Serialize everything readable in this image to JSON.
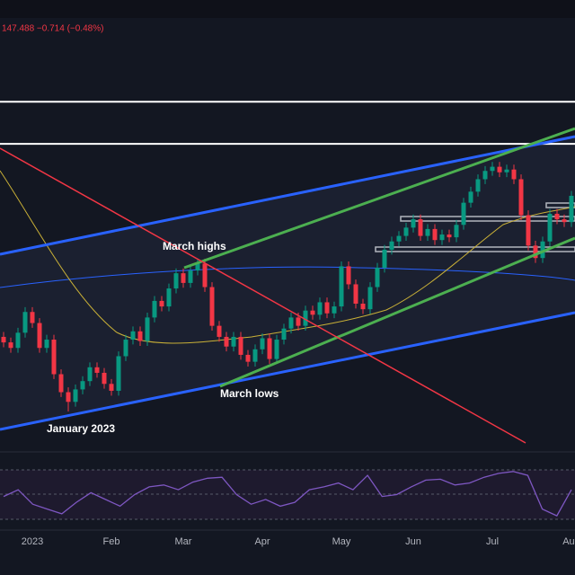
{
  "chart_data": {
    "type": "candlestick",
    "header": "147.488 −0.714 (−0.48%)",
    "annotations": [
      "March highs",
      "March lows",
      "January 2023"
    ],
    "categories": [
      null,
      null,
      null,
      null,
      "2023",
      null,
      null,
      null,
      null,
      null,
      null,
      null,
      null,
      null,
      null,
      "Feb",
      null,
      null,
      null,
      null,
      null,
      null,
      null,
      null,
      null,
      "Mar",
      null,
      null,
      null,
      null,
      null,
      null,
      null,
      null,
      null,
      null,
      "Apr",
      null,
      null,
      null,
      null,
      null,
      null,
      null,
      null,
      null,
      null,
      "May",
      null,
      null,
      null,
      null,
      null,
      null,
      null,
      null,
      null,
      "Jun",
      null,
      null,
      null,
      null,
      null,
      null,
      null,
      null,
      null,
      null,
      "Jul",
      null,
      null,
      null,
      null,
      null,
      null,
      null,
      null,
      null,
      null,
      "Aug"
    ],
    "open": [
      132.6,
      132.2,
      131.8,
      132.9,
      134.4,
      133.6,
      131.8,
      132.4,
      129.9,
      128.6,
      127.9,
      128.8,
      129.4,
      130.4,
      130.0,
      129.2,
      128.7,
      131.2,
      132.4,
      133.0,
      132.3,
      134.0,
      135.2,
      134.8,
      136.1,
      137.2,
      136.5,
      137.4,
      137.9,
      136.2,
      133.4,
      132.6,
      131.9,
      132.6,
      131.3,
      130.8,
      131.7,
      132.5,
      131.0,
      132.4,
      133.2,
      134.0,
      133.4,
      134.5,
      134.2,
      135.1,
      134.3,
      134.8,
      137.7,
      136.4,
      135.0,
      134.6,
      136.2,
      137.6,
      138.9,
      139.5,
      139.9,
      140.5,
      141.1,
      139.9,
      140.4,
      139.6,
      140.0,
      139.8,
      140.7,
      142.3,
      143.1,
      144.0,
      144.6,
      144.9,
      144.5,
      144.7,
      144.0,
      141.4,
      139.2,
      138.3,
      139.5,
      141.5,
      141.1,
      140.9
    ],
    "high": [
      132.95,
      132.55,
      133.25,
      134.75,
      134.75,
      133.95,
      132.75,
      132.75,
      130.25,
      128.95,
      129.15,
      129.75,
      130.75,
      130.75,
      130.35,
      129.55,
      131.55,
      132.75,
      133.35,
      133.35,
      134.35,
      135.55,
      135.55,
      136.45,
      137.55,
      137.55,
      137.75,
      138.25,
      138.25,
      136.55,
      133.75,
      132.95,
      132.95,
      132.95,
      131.65,
      132.05,
      132.85,
      132.85,
      132.75,
      133.55,
      134.35,
      134.35,
      134.85,
      134.85,
      135.45,
      135.45,
      135.15,
      138.05,
      138.05,
      136.75,
      135.35,
      136.55,
      137.95,
      139.25,
      139.85,
      140.25,
      140.85,
      141.45,
      141.45,
      140.75,
      140.75,
      140.35,
      140.35,
      141.05,
      142.65,
      143.45,
      144.35,
      144.95,
      145.25,
      145.25,
      145.05,
      145.05,
      144.35,
      141.75,
      139.55,
      139.85,
      141.85,
      141.85,
      141.45,
      143.15
    ],
    "low": [
      131.85,
      131.45,
      131.45,
      132.55,
      133.25,
      131.45,
      131.45,
      129.55,
      128.25,
      127.2,
      127.55,
      128.45,
      129.05,
      129.65,
      128.85,
      128.35,
      128.35,
      130.85,
      132.05,
      131.95,
      131.95,
      133.65,
      134.45,
      134.45,
      135.75,
      136.15,
      136.15,
      137.05,
      135.85,
      133.05,
      132.25,
      131.55,
      131.55,
      130.95,
      130.45,
      130.45,
      131.35,
      130.65,
      130.65,
      132.05,
      132.85,
      133.05,
      133.05,
      133.85,
      133.85,
      133.95,
      133.95,
      134.45,
      136.05,
      134.65,
      134.25,
      134.25,
      135.85,
      137.25,
      138.55,
      139.15,
      139.55,
      140.15,
      139.55,
      139.55,
      139.25,
      139.25,
      139.45,
      139.45,
      140.35,
      141.95,
      142.75,
      143.65,
      144.25,
      144.15,
      144.15,
      143.65,
      141.05,
      138.85,
      137.95,
      137.95,
      139.15,
      140.75,
      140.55,
      140.55
    ],
    "close": [
      132.2,
      131.8,
      132.9,
      134.4,
      133.6,
      131.8,
      132.4,
      129.9,
      128.6,
      127.9,
      128.8,
      129.4,
      130.4,
      130.0,
      129.2,
      128.7,
      131.2,
      132.4,
      133.0,
      132.3,
      134.0,
      135.2,
      134.8,
      136.1,
      137.2,
      136.5,
      137.4,
      137.9,
      136.2,
      133.4,
      132.6,
      131.9,
      132.6,
      131.3,
      130.8,
      131.7,
      132.5,
      131.0,
      132.4,
      133.2,
      134.0,
      133.4,
      134.5,
      134.2,
      135.1,
      134.3,
      134.8,
      137.7,
      136.4,
      135.0,
      134.6,
      136.2,
      137.6,
      138.9,
      139.5,
      139.9,
      140.5,
      141.1,
      139.9,
      140.4,
      139.6,
      140.0,
      139.8,
      140.7,
      142.3,
      143.1,
      144.0,
      144.6,
      144.9,
      144.5,
      144.7,
      144.0,
      141.4,
      139.2,
      138.3,
      139.5,
      141.5,
      141.1,
      140.9,
      142.8
    ],
    "up_color": "#089981",
    "down_color": "#f23645",
    "ylim": [
      124.8,
      155.66
    ],
    "levels": [
      149.6,
      146.56
    ],
    "rsi": {
      "values": [
        48,
        55,
        40,
        35,
        30,
        42,
        52,
        45,
        38,
        50,
        58,
        60,
        55,
        63,
        67,
        68,
        50,
        40,
        45,
        38,
        42,
        55,
        58,
        62,
        55,
        70,
        48,
        50,
        58,
        65,
        66,
        60,
        62,
        68,
        72,
        74,
        70,
        35,
        28,
        55
      ],
      "color": "#7e57c2",
      "ylim": [
        15,
        85
      ]
    }
  }
}
